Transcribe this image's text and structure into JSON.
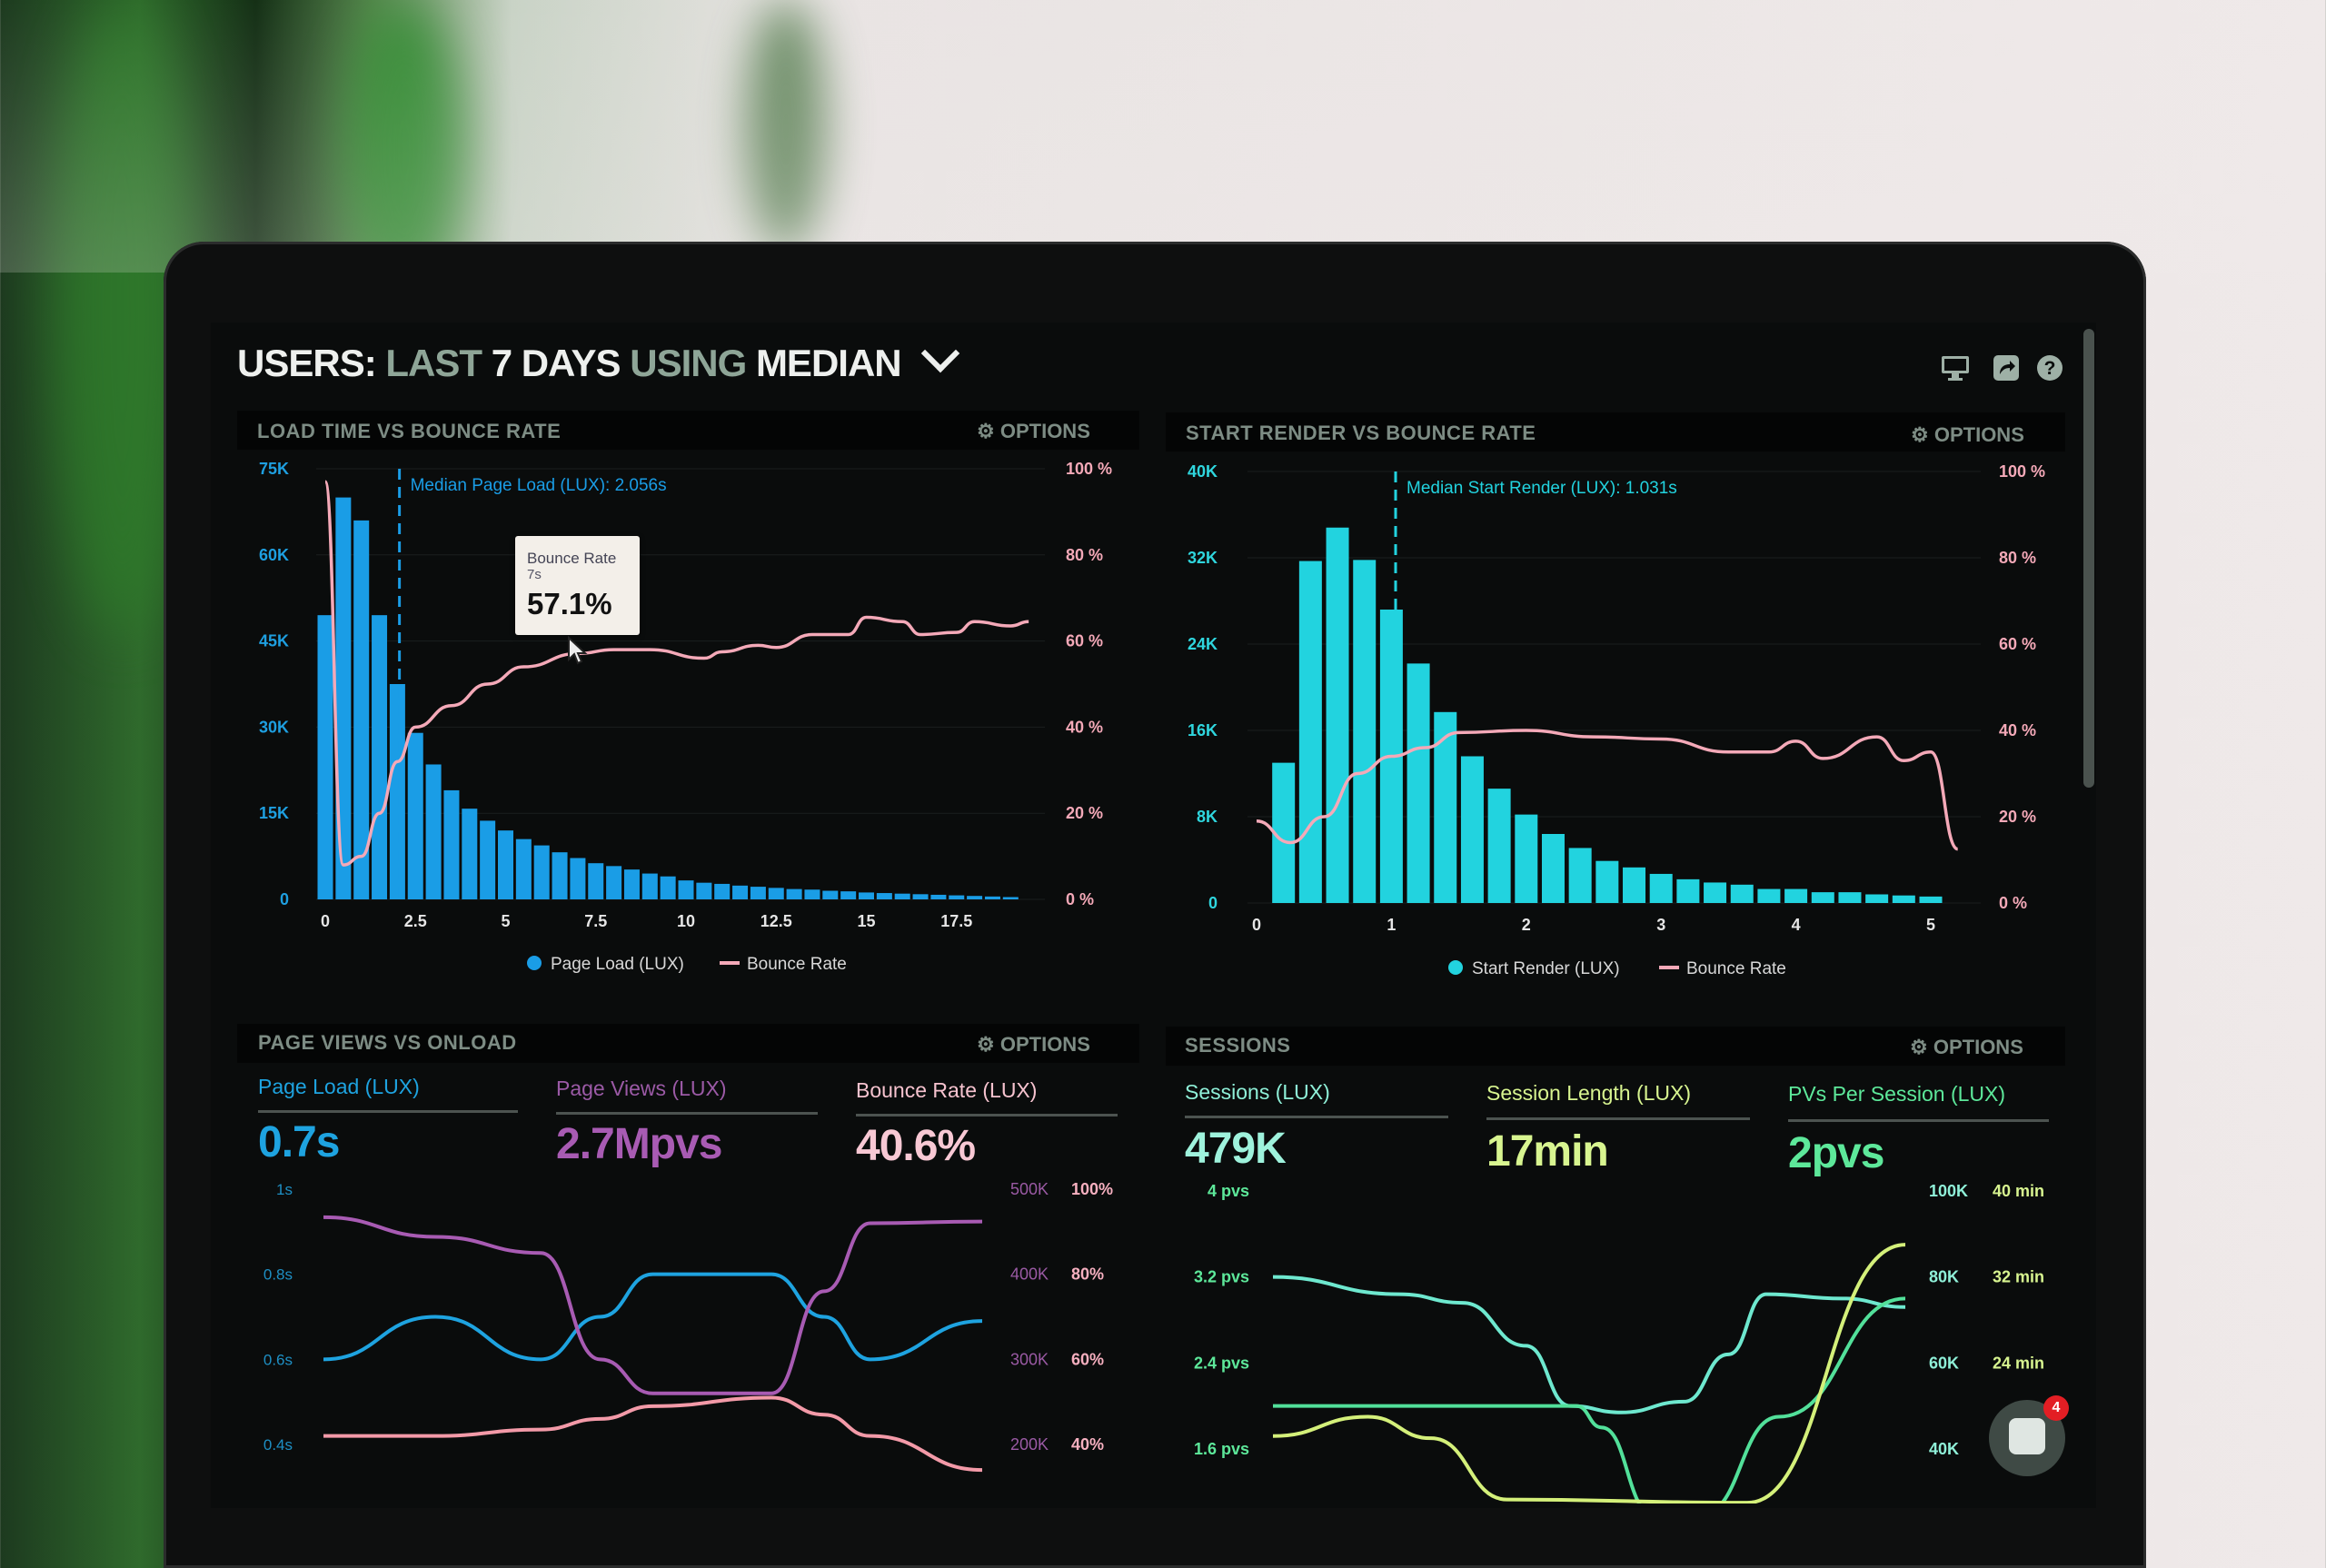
{
  "header": {
    "title_parts": [
      "USERS:",
      "LAST",
      "7 DAYS",
      "USING",
      "MEDIAN"
    ],
    "icons": [
      "monitor-icon",
      "share-icon",
      "help-icon"
    ]
  },
  "colors": {
    "bar_blue": "#1a9de6",
    "bar_cyan": "#22d3df",
    "bounce_pink": "#f4a9b8",
    "page_load_blue": "#1ea3e0",
    "page_views_purple": "#a85bb3",
    "bounce_lux_pink": "#f39aa8",
    "sessions_teal": "#6ee8cf",
    "session_length_yellow": "#d4f07a",
    "pvs_green": "#52e09a"
  },
  "panels": {
    "load_time": {
      "title": "LOAD TIME VS BOUNCE RATE",
      "options": "OPTIONS"
    },
    "start_render": {
      "title": "START RENDER VS BOUNCE RATE",
      "options": "OPTIONS"
    },
    "page_views": {
      "title": "PAGE VIEWS VS ONLOAD",
      "options": "OPTIONS",
      "metrics": [
        {
          "label": "Page Load (LUX)",
          "value": "0.7s"
        },
        {
          "label": "Page Views (LUX)",
          "value": "2.7Mpvs"
        },
        {
          "label": "Bounce Rate (LUX)",
          "value": "40.6%"
        }
      ]
    },
    "sessions": {
      "title": "SESSIONS",
      "options": "OPTIONS",
      "metrics": [
        {
          "label": "Sessions (LUX)",
          "value": "479K"
        },
        {
          "label": "Session Length (LUX)",
          "value": "17min"
        },
        {
          "label": "PVs Per Session (LUX)",
          "value": "2pvs"
        }
      ]
    }
  },
  "tooltip": {
    "series": "Bounce Rate",
    "x": "7s",
    "value": "57.1%"
  },
  "chat": {
    "badge_count": "4"
  },
  "chart_data": [
    {
      "type": "bar",
      "title": "LOAD TIME VS BOUNCE RATE",
      "annotation": "Median Page Load (LUX): 2.056s",
      "median_x": 2.056,
      "x_ticks": [
        "0",
        "2.5",
        "5",
        "7.5",
        "10",
        "12.5",
        "15",
        "17.5"
      ],
      "x_tick_values": [
        0,
        2.5,
        5,
        7.5,
        10,
        12.5,
        15,
        17.5
      ],
      "y_left_ticks": [
        "0",
        "15K",
        "30K",
        "45K",
        "60K",
        "75K"
      ],
      "y_right_ticks": [
        "0 %",
        "20 %",
        "40 %",
        "60 %",
        "80 %",
        "100 %"
      ],
      "ylim_left": [
        0,
        75000
      ],
      "ylim_right": [
        0,
        100
      ],
      "legend": [
        "Page Load (LUX)",
        "Bounce Rate"
      ],
      "bars": {
        "name": "Page Load (LUX)",
        "x_start": 0,
        "x_step": 0.5,
        "values": [
          49500,
          70000,
          66000,
          49500,
          37500,
          29000,
          23500,
          19000,
          15800,
          13700,
          12000,
          10500,
          9400,
          8200,
          7200,
          6300,
          5800,
          5200,
          4500,
          4000,
          3300,
          2900,
          2700,
          2400,
          2200,
          2000,
          1800,
          1700,
          1500,
          1400,
          1200,
          1100,
          1000,
          900,
          800,
          700,
          600,
          500,
          400
        ]
      },
      "line": {
        "name": "Bounce Rate",
        "x": [
          0,
          0.5,
          1,
          1.5,
          2,
          2.5,
          3.5,
          4.5,
          5.5,
          7,
          8,
          9,
          10.5,
          11,
          12,
          12.5,
          13.5,
          14.5,
          15,
          16,
          16.5,
          17.5,
          18,
          19,
          19.5
        ],
        "y": [
          97,
          8,
          10,
          20,
          32,
          40,
          45,
          50,
          54,
          57.1,
          58,
          58,
          56,
          57.5,
          59,
          58.5,
          61.5,
          61.5,
          65.5,
          64.5,
          61.5,
          62,
          64.5,
          63.5,
          64.5
        ]
      },
      "grid": true
    },
    {
      "type": "bar",
      "title": "START RENDER VS BOUNCE RATE",
      "annotation": "Median Start Render (LUX): 1.031s",
      "median_x": 1.031,
      "x_ticks": [
        "0",
        "1",
        "2",
        "3",
        "4",
        "5"
      ],
      "x_tick_values": [
        0,
        1,
        2,
        3,
        4,
        5
      ],
      "y_left_ticks": [
        "0",
        "8K",
        "16K",
        "24K",
        "32K",
        "40K"
      ],
      "y_right_ticks": [
        "0 %",
        "20 %",
        "40 %",
        "60 %",
        "80 %",
        "100 %"
      ],
      "ylim_left": [
        0,
        40000
      ],
      "ylim_right": [
        0,
        100
      ],
      "legend": [
        "Start Render (LUX)",
        "Bounce Rate"
      ],
      "bars": {
        "name": "Start Render (LUX)",
        "x_start": 0.2,
        "x_step": 0.2,
        "values": [
          13000,
          31700,
          34800,
          31800,
          27200,
          22200,
          17700,
          13600,
          10600,
          8200,
          6400,
          5100,
          3900,
          3300,
          2700,
          2200,
          1900,
          1700,
          1300,
          1300,
          1000,
          1000,
          800,
          700,
          600
        ]
      },
      "line": {
        "name": "Bounce Rate",
        "x": [
          0,
          0.25,
          0.5,
          0.75,
          1,
          1.25,
          1.5,
          2,
          2.5,
          3,
          3.5,
          3.8,
          4,
          4.2,
          4.6,
          4.8,
          5,
          5.2
        ],
        "y": [
          19,
          14,
          20,
          30,
          34,
          36,
          39.5,
          40,
          38.5,
          38,
          35,
          35,
          37.5,
          33.5,
          38.5,
          33,
          35,
          12.5
        ]
      },
      "grid": true
    },
    {
      "type": "line",
      "title": "PAGE VIEWS VS ONLOAD",
      "y_left_ticks": [
        "1s",
        "0.8s",
        "0.6s",
        "0.4s"
      ],
      "y_right_ticks_views": [
        "500K",
        "400K",
        "300K",
        "200K"
      ],
      "y_right_ticks_bounce": [
        "100%",
        "80%",
        "60%",
        "40%"
      ],
      "ylim_left": [
        0.4,
        1.0
      ],
      "ylim_views": [
        200000,
        500000
      ],
      "ylim_bounce": [
        40,
        100
      ],
      "x": [
        0,
        0.17,
        0.33,
        0.42,
        0.5,
        0.68,
        0.76,
        0.83,
        1.0
      ],
      "series": [
        {
          "name": "Page Load (LUX)",
          "axis": "left",
          "y": [
            0.6,
            0.7,
            0.6,
            0.7,
            0.8,
            0.8,
            0.7,
            0.6,
            0.69
          ]
        },
        {
          "name": "Page Views (LUX)",
          "axis": "views",
          "y": [
            467000,
            444000,
            425000,
            300000,
            260000,
            260000,
            380000,
            460000,
            462000
          ]
        },
        {
          "name": "Bounce Rate (LUX)",
          "axis": "bounce",
          "y": [
            42,
            42,
            43.5,
            46,
            49,
            51,
            47,
            42,
            34
          ]
        }
      ],
      "grid": false
    },
    {
      "type": "line",
      "title": "SESSIONS",
      "y_left_ticks": [
        "4 pvs",
        "3.2 pvs",
        "2.4 pvs",
        "1.6 pvs"
      ],
      "y_right_ticks_sessions": [
        "100K",
        "80K",
        "60K",
        "40K"
      ],
      "y_right_ticks_minutes": [
        "40 min",
        "32 min",
        "24 min"
      ],
      "ylim_left": [
        1.6,
        4
      ],
      "ylim_sessions": [
        40000,
        100000
      ],
      "ylim_minutes": [
        16,
        40
      ],
      "series": [
        {
          "name": "Sessions (LUX)",
          "axis": "sessions",
          "x": [
            0,
            0.2,
            0.3,
            0.4,
            0.47,
            0.55,
            0.65,
            0.72,
            0.78,
            0.9,
            1.0
          ],
          "y": [
            80000,
            76000,
            74000,
            64000,
            50000,
            48500,
            51000,
            62000,
            76000,
            75000,
            73000
          ]
        },
        {
          "name": "PVs Per Session (LUX)",
          "axis": "left",
          "x": [
            0,
            0.3,
            0.48,
            0.52,
            0.6,
            0.68,
            0.8,
            1.0
          ],
          "y": [
            2.0,
            2.0,
            2.0,
            1.8,
            1.0,
            1.0,
            1.9,
            3.0
          ]
        },
        {
          "name": "Session Length (LUX)",
          "axis": "minutes",
          "x": [
            0,
            0.15,
            0.25,
            0.37,
            0.75,
            1.0
          ],
          "y": [
            17.2,
            19,
            17,
            11.3,
            11,
            35
          ]
        }
      ],
      "grid": false
    }
  ]
}
